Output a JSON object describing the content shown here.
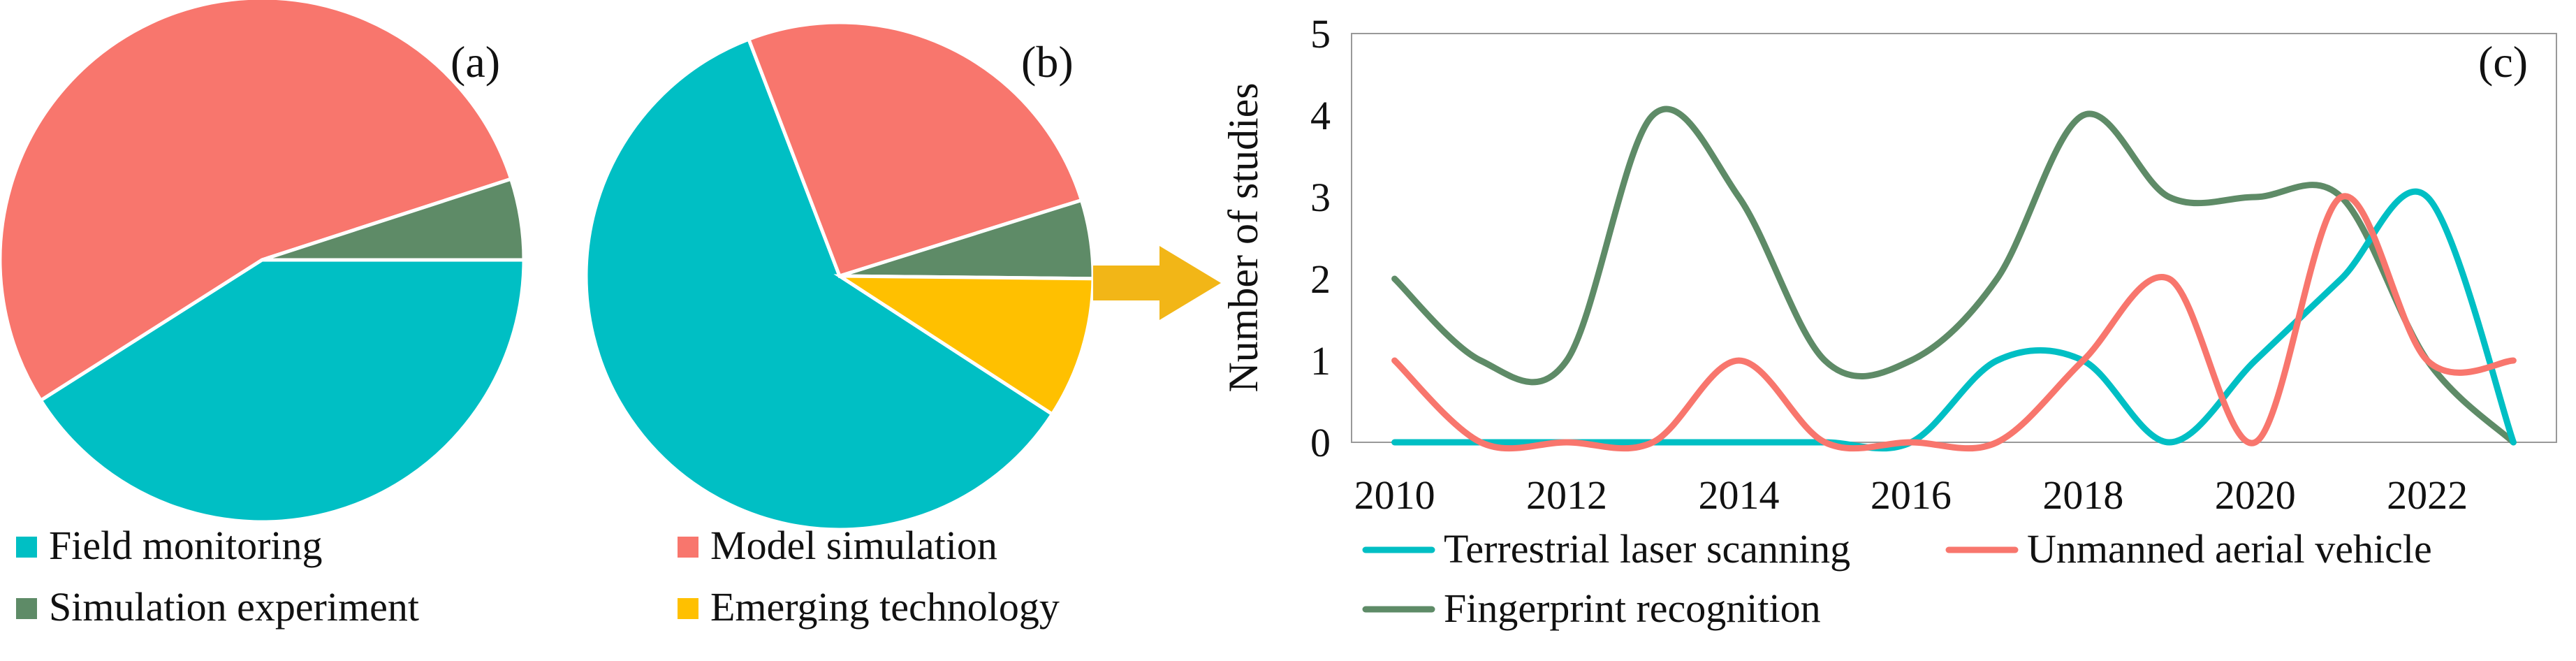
{
  "colors": {
    "field_monitoring": "#00BFC4",
    "model_simulation": "#F8766D",
    "simulation_experiment": "#5E8B67",
    "emerging_technology": "#FFC000",
    "arrow": "#F2B617",
    "tls": "#00BFC4",
    "uav": "#F8766D",
    "fingerprint": "#5E8B67"
  },
  "panels": {
    "a": "(a)",
    "b": "(b)",
    "c": "(c)"
  },
  "legend_left": [
    {
      "label": "Field monitoring",
      "color": "#00BFC4"
    },
    {
      "label": "Model simulation",
      "color": "#F8766D"
    },
    {
      "label": "Simulation experiment",
      "color": "#5E8B67"
    },
    {
      "label": "Emerging technology",
      "color": "#FFC000"
    }
  ],
  "chart_data": [
    {
      "type": "pie",
      "panel": "(a)",
      "slices": [
        {
          "label": "Field monitoring",
          "value": 41,
          "color": "#00BFC4"
        },
        {
          "label": "Model simulation",
          "value": 54,
          "color": "#F8766D"
        },
        {
          "label": "Simulation experiment",
          "value": 5,
          "color": "#5E8B67"
        }
      ]
    },
    {
      "type": "pie",
      "panel": "(b)",
      "slices": [
        {
          "label": "Field monitoring",
          "value": 60,
          "color": "#00BFC4"
        },
        {
          "label": "Model simulation",
          "value": 26,
          "color": "#F8766D"
        },
        {
          "label": "Simulation experiment",
          "value": 5,
          "color": "#5E8B67"
        },
        {
          "label": "Emerging technology",
          "value": 9,
          "color": "#FFC000"
        }
      ]
    },
    {
      "type": "line",
      "panel": "(c)",
      "title": "",
      "xlabel": "",
      "ylabel": "Number of studies",
      "xlim": [
        2009.5,
        2023.5
      ],
      "ylim": [
        0,
        5
      ],
      "xticks": [
        "2010",
        "2012",
        "2014",
        "2016",
        "2018",
        "2020",
        "2022"
      ],
      "yticks": [
        "0",
        "1",
        "2",
        "3",
        "4",
        "5"
      ],
      "x": [
        2010,
        2011,
        2012,
        2013,
        2014,
        2015,
        2016,
        2017,
        2018,
        2019,
        2020,
        2021,
        2022,
        2023
      ],
      "series": [
        {
          "name": "Terrestrial laser scanning",
          "color": "#00BFC4",
          "values": [
            0,
            0,
            0,
            0,
            0,
            0,
            0,
            1,
            1,
            0,
            1,
            2,
            3,
            0
          ]
        },
        {
          "name": "Unmanned aerial vehicle",
          "color": "#F8766D",
          "values": [
            1,
            0,
            0,
            0,
            1,
            0,
            0,
            0,
            1,
            2,
            0,
            3,
            1,
            1
          ]
        },
        {
          "name": "Fingerprint recognition",
          "color": "#5E8B67",
          "values": [
            2,
            1,
            1,
            4,
            3,
            1,
            1,
            2,
            4,
            3,
            3,
            3,
            1,
            0
          ]
        }
      ]
    }
  ]
}
